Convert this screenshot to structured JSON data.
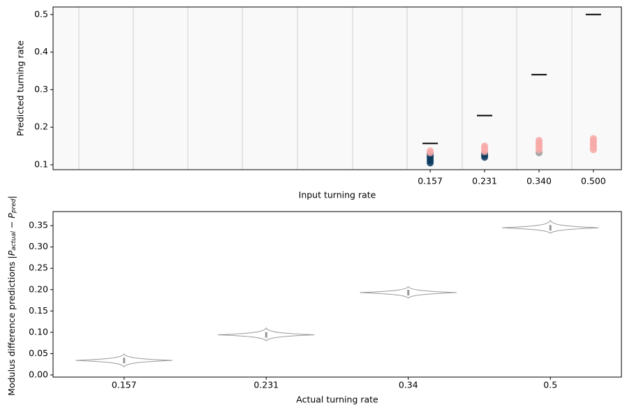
{
  "chart_data": [
    {
      "type": "scatter",
      "xlabel": "Input turning rate",
      "ylabel": "Predicted turning rate",
      "xscale": "log",
      "xlim": [
        0.0108,
        0.61
      ],
      "ylim": [
        0.087,
        0.52
      ],
      "xticks": [
        {
          "value": 0.157,
          "label": "0.157"
        },
        {
          "value": 0.231,
          "label": "0.231"
        },
        {
          "value": 0.34,
          "label": "0.340"
        },
        {
          "value": 0.5,
          "label": "0.500"
        }
      ],
      "yticks": [
        {
          "value": 0.1,
          "label": "0.1"
        },
        {
          "value": 0.2,
          "label": "0.2"
        },
        {
          "value": 0.3,
          "label": "0.3"
        },
        {
          "value": 0.4,
          "label": "0.4"
        },
        {
          "value": 0.5,
          "label": "0.5"
        }
      ],
      "background": "#f9f9f9",
      "series": [
        {
          "color": "#000000",
          "marker": "dash",
          "x": [
            0.157,
            0.231,
            0.34,
            0.5
          ],
          "values": [
            0.157,
            0.231,
            0.34,
            0.5
          ]
        },
        {
          "color": "#0d3b5e",
          "marker": "dot",
          "x": [
            0.157,
            0.157,
            0.157,
            0.157,
            0.157,
            0.157,
            0.231,
            0.231,
            0.231
          ],
          "values": [
            0.105,
            0.11,
            0.115,
            0.12,
            0.125,
            0.13,
            0.12,
            0.125,
            0.13
          ]
        },
        {
          "color": "#999999",
          "marker": "dot",
          "x": [
            0.34
          ],
          "values": [
            0.132
          ]
        },
        {
          "color": "#f7a9a8",
          "marker": "dot",
          "x": [
            0.157,
            0.157,
            0.231,
            0.231,
            0.231,
            0.231,
            0.34,
            0.34,
            0.34,
            0.34,
            0.34,
            0.34,
            0.5,
            0.5,
            0.5,
            0.5,
            0.5,
            0.5,
            0.5
          ],
          "values": [
            0.132,
            0.137,
            0.135,
            0.14,
            0.145,
            0.15,
            0.14,
            0.145,
            0.15,
            0.155,
            0.16,
            0.165,
            0.14,
            0.145,
            0.15,
            0.155,
            0.16,
            0.165,
            0.17
          ]
        }
      ]
    },
    {
      "type": "violin",
      "xlabel": "Actual turning rate",
      "ylabel": "Modulus difference predictions",
      "ylabel_math": [
        "|P",
        "actual",
        " − P",
        "pred",
        "|"
      ],
      "categories": [
        "0.157",
        "0.231",
        "0.34",
        "0.5"
      ],
      "values": [
        0.034,
        0.094,
        0.193,
        0.345
      ],
      "min": [
        0.019,
        0.08,
        0.18,
        0.332
      ],
      "max": [
        0.049,
        0.11,
        0.207,
        0.362
      ],
      "color": "#999999",
      "ylim": [
        -0.005,
        0.383
      ],
      "yticks": [
        {
          "value": 0,
          "label": "0.00"
        },
        {
          "value": 0.05,
          "label": "0.05"
        },
        {
          "value": 0.1,
          "label": "0.10"
        },
        {
          "value": 0.15,
          "label": "0.15"
        },
        {
          "value": 0.2,
          "label": "0.20"
        },
        {
          "value": 0.25,
          "label": "0.25"
        },
        {
          "value": 0.3,
          "label": "0.30"
        },
        {
          "value": 0.35,
          "label": "0.35"
        }
      ]
    }
  ]
}
